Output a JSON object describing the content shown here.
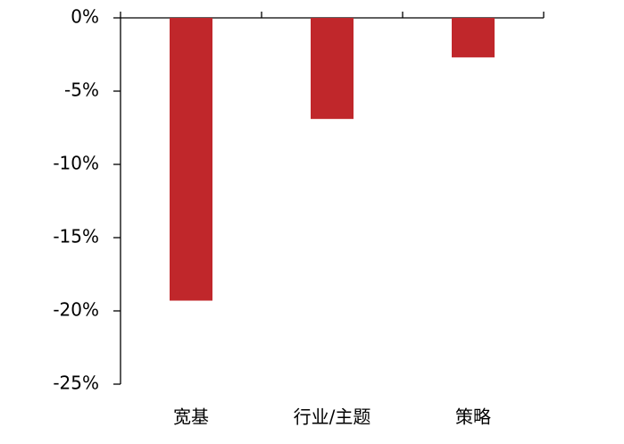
{
  "chart_data": {
    "type": "bar",
    "categories": [
      "宽基",
      "行业/主题",
      "策略"
    ],
    "values": [
      -19.3,
      -6.9,
      -2.7
    ],
    "color": "#c0272b",
    "ylim": [
      -25,
      0
    ],
    "yticks": [
      {
        "value": 0,
        "label": "0%"
      },
      {
        "value": -5,
        "label": "-5%"
      },
      {
        "value": -10,
        "label": "-10%"
      },
      {
        "value": -15,
        "label": "-15%"
      },
      {
        "value": -20,
        "label": "-20%"
      },
      {
        "value": -25,
        "label": "-25%"
      }
    ]
  }
}
